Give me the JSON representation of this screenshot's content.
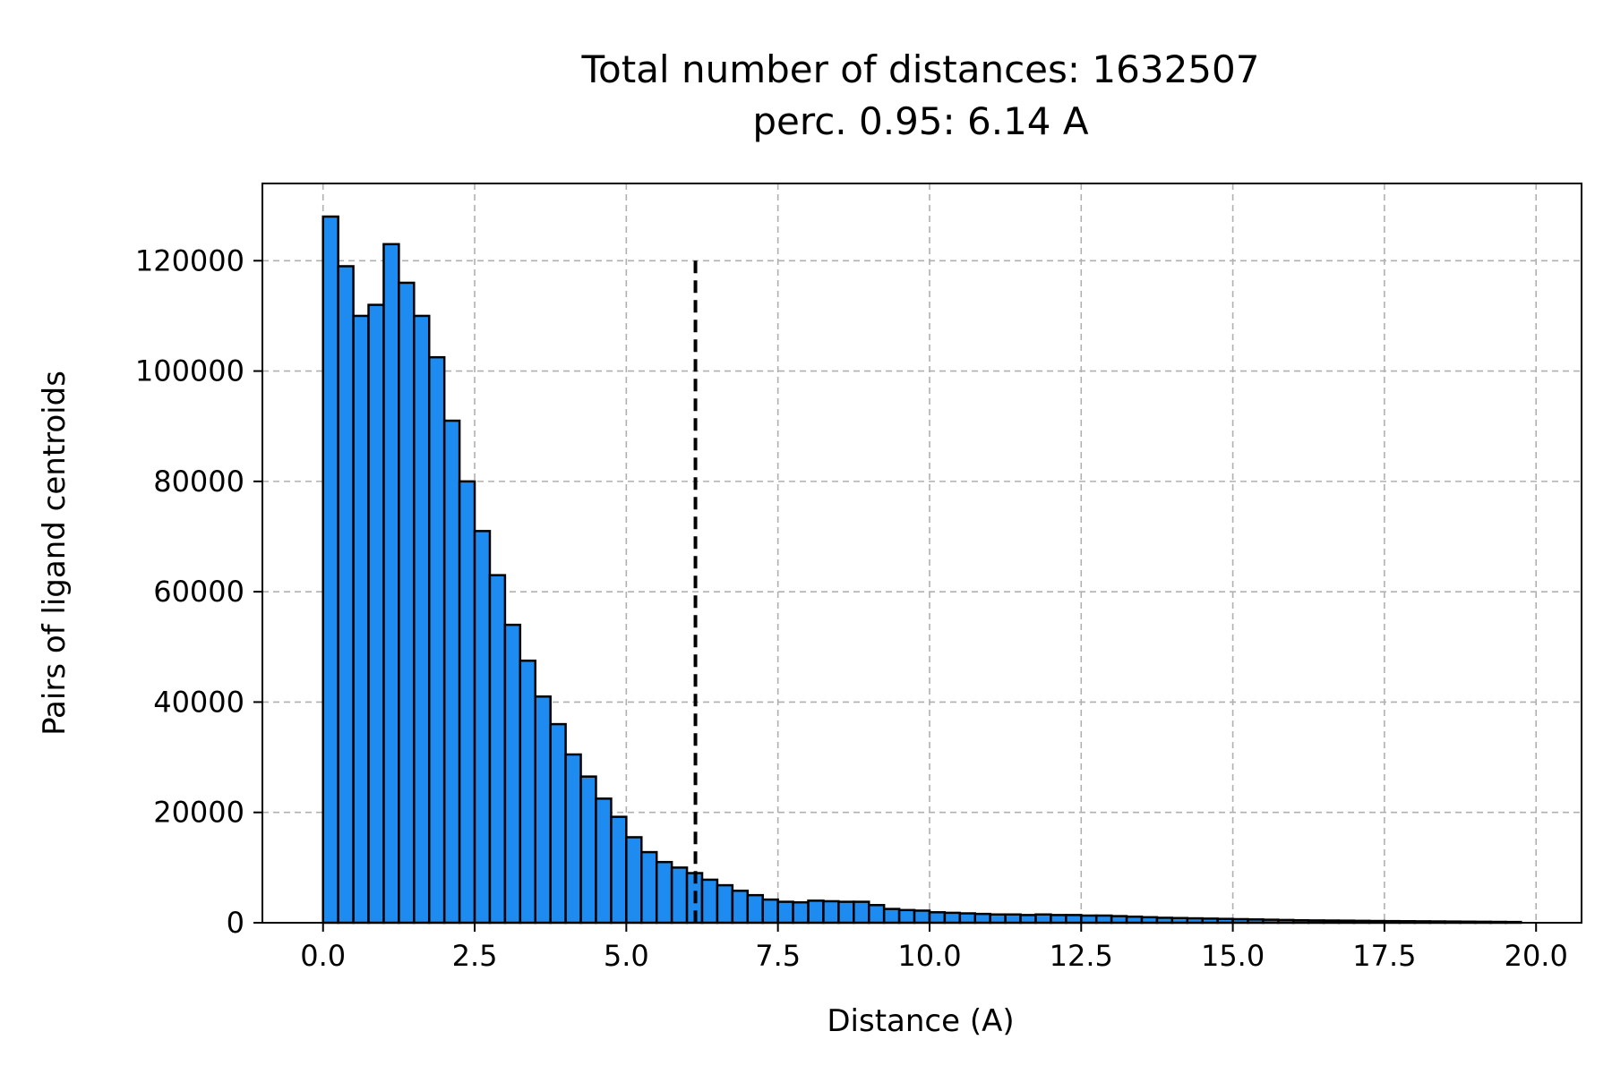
{
  "chart_data": {
    "type": "bar",
    "title": [
      "Total number of distances: 1632507",
      "perc. 0.95: 6.14 A"
    ],
    "xlabel": "Distance (A)",
    "ylabel": "Pairs of ligand centroids",
    "xlim": [
      -1.0,
      20.75
    ],
    "ylim": [
      0,
      134000
    ],
    "xticks": [
      0.0,
      2.5,
      5.0,
      7.5,
      10.0,
      12.5,
      15.0,
      17.5,
      20.0
    ],
    "xtick_labels": [
      "0.0",
      "2.5",
      "5.0",
      "7.5",
      "10.0",
      "12.5",
      "15.0",
      "17.5",
      "20.0"
    ],
    "yticks": [
      0,
      20000,
      40000,
      60000,
      80000,
      100000,
      120000
    ],
    "ytick_labels": [
      "0",
      "20000",
      "40000",
      "60000",
      "80000",
      "100000",
      "120000"
    ],
    "grid": true,
    "bar_color": "#1e8bf0",
    "bin_start": 0.0,
    "bin_width": 0.25,
    "values": [
      128000,
      119000,
      110000,
      112000,
      123000,
      116000,
      110000,
      102500,
      91000,
      80000,
      71000,
      63000,
      54000,
      47500,
      41000,
      36000,
      30500,
      26500,
      22500,
      19200,
      15500,
      12800,
      11000,
      10000,
      9000,
      7800,
      6800,
      5800,
      5000,
      4200,
      3800,
      3700,
      4000,
      3900,
      3800,
      3800,
      3200,
      2500,
      2300,
      2200,
      1900,
      1800,
      1700,
      1600,
      1500,
      1500,
      1400,
      1500,
      1400,
      1400,
      1300,
      1300,
      1200,
      1100,
      1000,
      900,
      850,
      800,
      750,
      700,
      650,
      600,
      550,
      500,
      450,
      420,
      400,
      380,
      350,
      320,
      300,
      280,
      260,
      240,
      220,
      200,
      180,
      160,
      140
    ],
    "percentile_line": {
      "x": 6.14,
      "y_top": 120000
    }
  }
}
